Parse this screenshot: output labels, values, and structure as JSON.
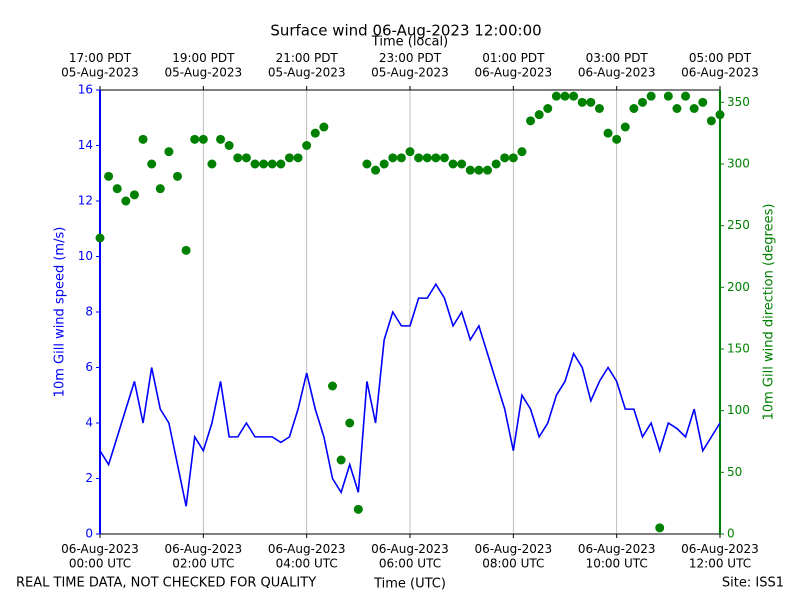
{
  "chart_data": {
    "type": "line",
    "title": "Surface wind 06-Aug-2023 12:00:00",
    "xlabel": "Time (UTC)",
    "top_xlabel": "Time (local)",
    "ylabel": "10m Gill wind speed (m/s)",
    "y2label": "10m Gill wind direction (degrees)",
    "note_left": "REAL TIME DATA, NOT CHECKED FOR QUALITY",
    "note_right": "Site: ISS1",
    "xlim": [
      "2023-08-06T00:00",
      "2023-08-06T12:00"
    ],
    "xticks": [
      {
        "value": "2023-08-06T00:00",
        "label": "06-Aug-2023\n00:00 UTC"
      },
      {
        "value": "2023-08-06T02:00",
        "label": "06-Aug-2023\n02:00 UTC"
      },
      {
        "value": "2023-08-06T04:00",
        "label": "06-Aug-2023\n04:00 UTC"
      },
      {
        "value": "2023-08-06T06:00",
        "label": "06-Aug-2023\n06:00 UTC"
      },
      {
        "value": "2023-08-06T08:00",
        "label": "06-Aug-2023\n08:00 UTC"
      },
      {
        "value": "2023-08-06T10:00",
        "label": "06-Aug-2023\n10:00 UTC"
      },
      {
        "value": "2023-08-06T12:00",
        "label": "06-Aug-2023\n12:00 UTC"
      }
    ],
    "top_xticks": [
      {
        "value": "2023-08-06T00:00",
        "label": "17:00 PDT\n05-Aug-2023"
      },
      {
        "value": "2023-08-06T02:00",
        "label": "19:00 PDT\n05-Aug-2023"
      },
      {
        "value": "2023-08-06T04:00",
        "label": "21:00 PDT\n05-Aug-2023"
      },
      {
        "value": "2023-08-06T06:00",
        "label": "23:00 PDT\n05-Aug-2023"
      },
      {
        "value": "2023-08-06T08:00",
        "label": "01:00 PDT\n06-Aug-2023"
      },
      {
        "value": "2023-08-06T10:00",
        "label": "03:00 PDT\n06-Aug-2023"
      },
      {
        "value": "2023-08-06T12:00",
        "label": "05:00 PDT\n06-Aug-2023"
      }
    ],
    "ylim": [
      0,
      16
    ],
    "yticks": [
      0,
      2,
      4,
      6,
      8,
      10,
      12,
      14,
      16
    ],
    "y2lim": [
      0,
      360
    ],
    "y2ticks": [
      0,
      50,
      100,
      150,
      200,
      250,
      300,
      350
    ],
    "grid": true,
    "x": [
      "2023-08-06T00:00",
      "2023-08-06T00:10",
      "2023-08-06T00:20",
      "2023-08-06T00:30",
      "2023-08-06T00:40",
      "2023-08-06T00:50",
      "2023-08-06T01:00",
      "2023-08-06T01:10",
      "2023-08-06T01:20",
      "2023-08-06T01:30",
      "2023-08-06T01:40",
      "2023-08-06T01:50",
      "2023-08-06T02:00",
      "2023-08-06T02:10",
      "2023-08-06T02:20",
      "2023-08-06T02:30",
      "2023-08-06T02:40",
      "2023-08-06T02:50",
      "2023-08-06T03:00",
      "2023-08-06T03:10",
      "2023-08-06T03:20",
      "2023-08-06T03:30",
      "2023-08-06T03:40",
      "2023-08-06T03:50",
      "2023-08-06T04:00",
      "2023-08-06T04:10",
      "2023-08-06T04:20",
      "2023-08-06T04:30",
      "2023-08-06T04:40",
      "2023-08-06T04:50",
      "2023-08-06T05:00",
      "2023-08-06T05:10",
      "2023-08-06T05:20",
      "2023-08-06T05:30",
      "2023-08-06T05:40",
      "2023-08-06T05:50",
      "2023-08-06T06:00",
      "2023-08-06T06:10",
      "2023-08-06T06:20",
      "2023-08-06T06:30",
      "2023-08-06T06:40",
      "2023-08-06T06:50",
      "2023-08-06T07:00",
      "2023-08-06T07:10",
      "2023-08-06T07:20",
      "2023-08-06T07:30",
      "2023-08-06T07:40",
      "2023-08-06T07:50",
      "2023-08-06T08:00",
      "2023-08-06T08:10",
      "2023-08-06T08:20",
      "2023-08-06T08:30",
      "2023-08-06T08:40",
      "2023-08-06T08:50",
      "2023-08-06T09:00",
      "2023-08-06T09:10",
      "2023-08-06T09:20",
      "2023-08-06T09:30",
      "2023-08-06T09:40",
      "2023-08-06T09:50",
      "2023-08-06T10:00",
      "2023-08-06T10:10",
      "2023-08-06T10:20",
      "2023-08-06T10:30",
      "2023-08-06T10:40",
      "2023-08-06T10:50",
      "2023-08-06T11:00",
      "2023-08-06T11:10",
      "2023-08-06T11:20",
      "2023-08-06T11:30",
      "2023-08-06T11:40",
      "2023-08-06T11:50",
      "2023-08-06T12:00"
    ],
    "series": [
      {
        "type": "line",
        "color": "#0000ff",
        "values": [
          3.0,
          2.5,
          3.5,
          4.5,
          5.5,
          4.0,
          6.0,
          4.5,
          4.0,
          2.5,
          1.0,
          3.5,
          3.0,
          4.0,
          5.5,
          3.5,
          3.5,
          4.0,
          3.5,
          3.5,
          3.5,
          3.3,
          3.5,
          4.5,
          5.8,
          4.5,
          3.5,
          2.0,
          1.5,
          2.5,
          1.5,
          5.5,
          4.0,
          7.0,
          8.0,
          7.5,
          7.5,
          8.5,
          8.5,
          9.0,
          8.5,
          7.5,
          8.0,
          7.0,
          7.5,
          6.5,
          5.5,
          4.5,
          3.0,
          5.0,
          4.5,
          3.5,
          4.0,
          5.0,
          5.5,
          6.5,
          6.0,
          4.8,
          5.5,
          6.0,
          5.5,
          4.5,
          4.5,
          3.5,
          4.0,
          3.0,
          4.0,
          3.8,
          3.5,
          4.5,
          3.0,
          3.5,
          4.0
        ]
      },
      {
        "type": "scatter",
        "axis": "y2",
        "color": "#008000",
        "values": [
          240,
          290,
          280,
          270,
          275,
          320,
          300,
          280,
          310,
          290,
          230,
          320,
          320,
          300,
          320,
          315,
          305,
          305,
          300,
          300,
          300,
          300,
          305,
          305,
          315,
          325,
          330,
          120,
          60,
          90,
          20,
          300,
          295,
          300,
          305,
          305,
          310,
          305,
          305,
          305,
          305,
          300,
          300,
          295,
          295,
          295,
          300,
          305,
          305,
          310,
          335,
          340,
          345,
          355,
          355,
          355,
          350,
          350,
          345,
          325,
          320,
          330,
          345,
          350,
          355,
          5,
          355,
          345,
          355,
          345,
          350,
          335,
          340
        ]
      }
    ]
  }
}
